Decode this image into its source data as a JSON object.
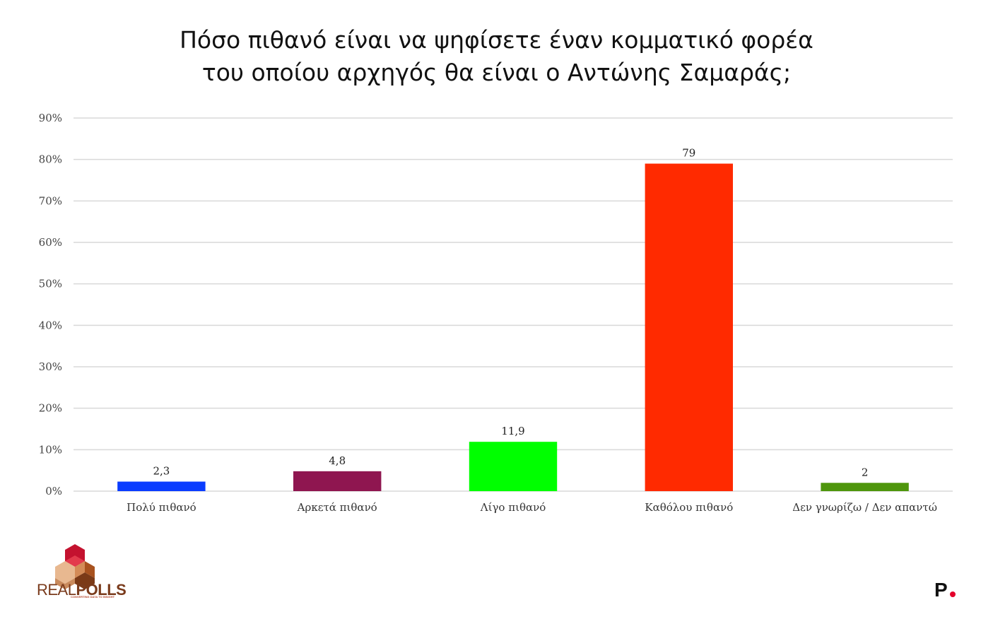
{
  "chart_data": {
    "type": "bar",
    "title_lines": [
      "Πόσο πιθανό είναι να ψηφίσετε έναν κομματικό φορέα",
      "του οποίου αρχηγός θα είναι ο Αντώνης Σαμαράς;"
    ],
    "categories": [
      "Πολύ πιθανό",
      "Αρκετά πιθανό",
      "Λίγο πιθανό",
      "Καθόλου πιθανό",
      "Δεν γνωρίζω / Δεν απαντώ"
    ],
    "values": [
      2.3,
      4.8,
      11.9,
      79,
      2
    ],
    "value_labels": [
      "2,3",
      "4,8",
      "11,9",
      "79",
      "2"
    ],
    "colors": [
      "#0a3cff",
      "#8f1650",
      "#00ff00",
      "#ff2a00",
      "#4e960c"
    ],
    "ylim": [
      0,
      90
    ],
    "yticks": [
      0,
      10,
      20,
      30,
      40,
      50,
      60,
      70,
      80,
      90
    ],
    "ytick_labels": [
      "0%",
      "10%",
      "20%",
      "30%",
      "40%",
      "50%",
      "60%",
      "70%",
      "80%",
      "90%"
    ],
    "grid": true,
    "gridline_color": "#d9d9d9",
    "xlabel": "",
    "ylabel": ""
  },
  "branding": {
    "logo_name_light": "REAL",
    "logo_name_bold": "POLLS",
    "logo_tagline": "CONVERTING DATA TO INSIGHT",
    "publisher_mark": "P",
    "publisher_dot_color": "#e4002b"
  }
}
